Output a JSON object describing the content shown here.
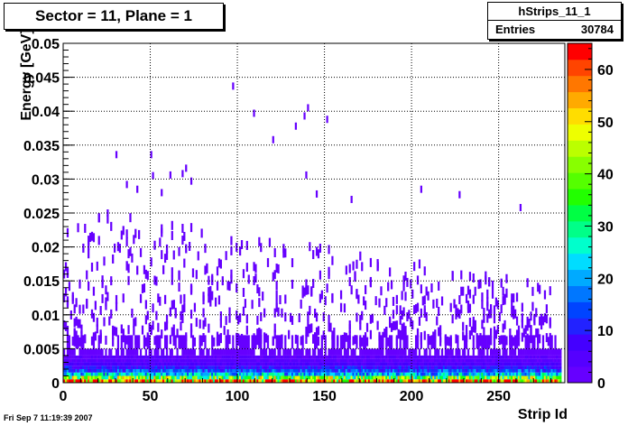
{
  "title": "Sector = 11, Plane = 1",
  "stats": {
    "name": "hStrips_11_1",
    "entries_label": "Entries",
    "entries_value": "30784"
  },
  "footer": "Fri Sep  7 11:19:39 2007",
  "chart_data": {
    "type": "heatmap",
    "title": "Sector = 11, Plane = 1",
    "xlabel": "Strip Id",
    "ylabel": "Energy [GeV]",
    "xlim": [
      0,
      288
    ],
    "ylim": [
      0,
      0.05
    ],
    "x_ticks": [
      0,
      50,
      100,
      150,
      200,
      250
    ],
    "y_ticks": [
      0,
      0.005,
      0.01,
      0.015,
      0.02,
      0.025,
      0.03,
      0.035,
      0.04,
      0.045,
      0.05
    ],
    "y_tick_labels": [
      "0",
      "0.005",
      "0.01",
      "0.015",
      "0.02",
      "0.025",
      "0.03",
      "0.035",
      "0.04",
      "0.045",
      "0.05"
    ],
    "grid": true,
    "colorbar": {
      "range": [
        0,
        65
      ],
      "ticks": [
        0,
        10,
        20,
        30,
        40,
        50,
        60
      ],
      "colors": [
        "#6600ff",
        "#5500ff",
        "#4400ff",
        "#2222ff",
        "#0044ff",
        "#0077ff",
        "#00aaff",
        "#00ddff",
        "#00ffcc",
        "#00ff88",
        "#00ff44",
        "#22ff00",
        "#55ff00",
        "#88ff00",
        "#bbff00",
        "#eeff00",
        "#ffdd00",
        "#ffaa00",
        "#ff7700",
        "#ff4400",
        "#ff0000"
      ]
    },
    "bands": [
      {
        "y0": 0,
        "y1": 0.0005,
        "count": 55
      },
      {
        "y0": 0.0005,
        "y1": 0.001,
        "count": 38
      },
      {
        "y0": 0.001,
        "y1": 0.0015,
        "count": 22
      },
      {
        "y0": 0.0015,
        "y1": 0.002,
        "count": 14
      },
      {
        "y0": 0.002,
        "y1": 0.0025,
        "count": 9
      },
      {
        "y0": 0.0025,
        "y1": 0.003,
        "count": 6
      },
      {
        "y0": 0.003,
        "y1": 0.0035,
        "count": 4
      },
      {
        "y0": 0.0035,
        "y1": 0.004,
        "count": 3
      },
      {
        "y0": 0.004,
        "y1": 0.005,
        "count": 2
      },
      {
        "y0": 0.005,
        "y1": 0.007,
        "count": 1
      }
    ],
    "sparse_points": [
      {
        "x": 97,
        "y": 0.0437
      },
      {
        "x": 109,
        "y": 0.0397
      },
      {
        "x": 140,
        "y": 0.0405
      },
      {
        "x": 138,
        "y": 0.0393
      },
      {
        "x": 151,
        "y": 0.0388
      },
      {
        "x": 133,
        "y": 0.0378
      },
      {
        "x": 120,
        "y": 0.0358
      },
      {
        "x": 30,
        "y": 0.0336
      },
      {
        "x": 50,
        "y": 0.0336
      },
      {
        "x": 70,
        "y": 0.0316
      },
      {
        "x": 68,
        "y": 0.0308
      },
      {
        "x": 61,
        "y": 0.0306
      },
      {
        "x": 51,
        "y": 0.0305
      },
      {
        "x": 139,
        "y": 0.0306
      },
      {
        "x": 36,
        "y": 0.0292
      },
      {
        "x": 73,
        "y": 0.0297
      },
      {
        "x": 42,
        "y": 0.0285
      },
      {
        "x": 56,
        "y": 0.028
      },
      {
        "x": 145,
        "y": 0.0278
      },
      {
        "x": 205,
        "y": 0.0285
      },
      {
        "x": 227,
        "y": 0.0277
      },
      {
        "x": 165,
        "y": 0.027
      },
      {
        "x": 262,
        "y": 0.0258
      },
      {
        "x": 25,
        "y": 0.025
      }
    ]
  }
}
